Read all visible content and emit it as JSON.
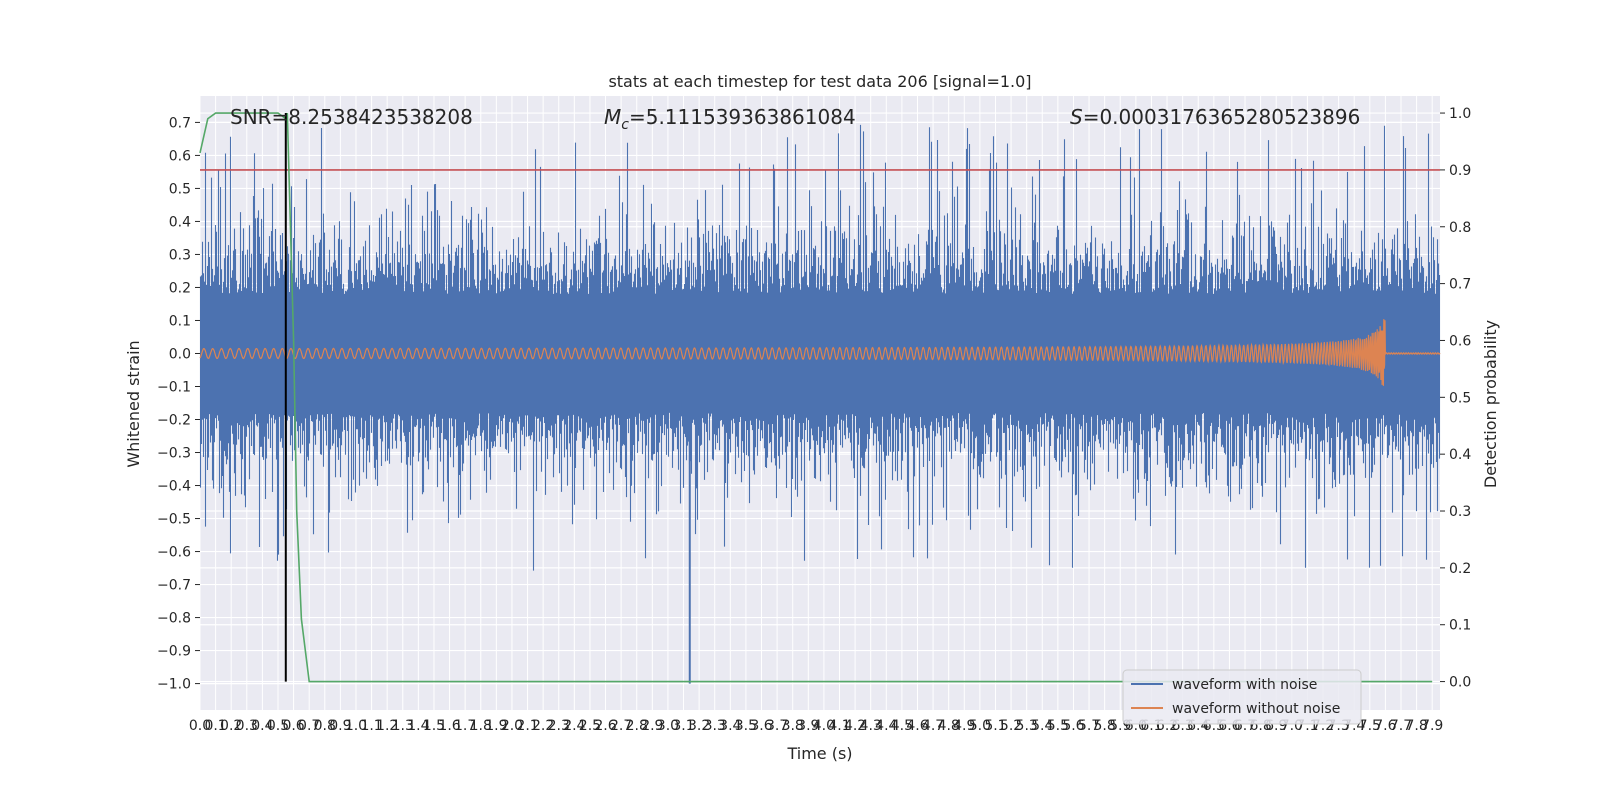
{
  "chart_data": {
    "type": "line",
    "title": "stats at each timestep for test data 206 [signal=1.0]",
    "xlabel": "Time (s)",
    "ylabel_left": "Whitened strain",
    "ylabel_right": "Detection probability",
    "xlim": [
      0.0,
      7.95
    ],
    "ylim_left": [
      -1.08,
      0.78
    ],
    "ylim_right": [
      -0.05,
      1.03
    ],
    "x_ticks": [
      "0.0",
      "0.1",
      "0.2",
      "0.3",
      "0.4",
      "0.5",
      "0.6",
      "0.7",
      "0.8",
      "0.9",
      "1.0",
      "1.1",
      "1.2",
      "1.3",
      "1.4",
      "1.5",
      "1.6",
      "1.7",
      "1.8",
      "1.9",
      "2.0",
      "2.1",
      "2.2",
      "2.3",
      "2.4",
      "2.5",
      "2.6",
      "2.7",
      "2.8",
      "2.9",
      "3.0",
      "3.1",
      "3.2",
      "3.3",
      "3.4",
      "3.5",
      "3.6",
      "3.7",
      "3.8",
      "3.9",
      "4.0",
      "4.1",
      "4.2",
      "4.3",
      "4.4",
      "4.5",
      "4.6",
      "4.7",
      "4.8",
      "4.9",
      "5.0",
      "5.1",
      "5.2",
      "5.3",
      "5.4",
      "5.5",
      "5.6",
      "5.7",
      "5.8",
      "5.9",
      "6.0",
      "6.1",
      "6.2",
      "6.3",
      "6.4",
      "6.5",
      "6.6",
      "6.7",
      "6.8",
      "6.9",
      "7.0",
      "7.1",
      "7.2",
      "7.3",
      "7.4",
      "7.5",
      "7.6",
      "7.7",
      "7.8",
      "7.9"
    ],
    "y_ticks_left": [
      "0.7",
      "0.6",
      "0.5",
      "0.4",
      "0.3",
      "0.2",
      "0.1",
      "0.0",
      "−0.1",
      "−0.2",
      "−0.3",
      "−0.4",
      "−0.5",
      "−0.6",
      "−0.7",
      "−0.8",
      "−0.9",
      "−1.0"
    ],
    "y_ticks_right": [
      "1.0",
      "0.9",
      "0.8",
      "0.7",
      "0.6",
      "0.5",
      "0.4",
      "0.3",
      "0.2",
      "0.1",
      "0.0"
    ],
    "stats": {
      "snr": "SNR=8.2538423538208",
      "mc_symbol": "M",
      "mc_sub": "c",
      "mc_value": "=5.111539363861084",
      "s_symbol": "S",
      "s_value": "=0.0003176365280523896"
    },
    "series": [
      {
        "name": "waveform with noise",
        "color": "#4c72b0",
        "axis": "left",
        "description_values": {
          "typical_abs_max": 0.4,
          "peak_max": 0.7,
          "peak_min": -1.0,
          "peak_min_time": 3.14
        }
      },
      {
        "name": "waveform without noise",
        "color": "#dd8452",
        "axis": "left",
        "description_values": {
          "start_amp": 0.01,
          "end_amp": 0.14,
          "merger_time": 7.6
        }
      },
      {
        "name": "detection probability",
        "color": "#55a868",
        "axis": "right",
        "x": [
          0.0,
          0.05,
          0.1,
          0.15,
          0.2,
          0.3,
          0.4,
          0.45,
          0.5,
          0.55,
          0.56,
          0.6,
          0.62,
          0.65,
          0.7,
          0.8,
          1.0,
          2.0,
          3.0,
          4.0,
          5.0,
          6.0,
          7.0,
          7.9
        ],
        "values": [
          0.93,
          0.99,
          1.0,
          1.0,
          1.0,
          1.0,
          1.0,
          1.0,
          1.0,
          0.99,
          1.0,
          0.6,
          0.3,
          0.11,
          0.0,
          0.0,
          0.0,
          0.0,
          0.0,
          0.0,
          0.0,
          0.0,
          0.0,
          0.0
        ]
      }
    ],
    "threshold": {
      "value": 0.9,
      "axis": "right",
      "color": "#c44e52"
    },
    "marker_line": {
      "x": 0.55,
      "color": "#000000"
    },
    "legend": {
      "position": "lower-right",
      "entries": [
        {
          "label": "waveform with noise",
          "color": "#4c72b0"
        },
        {
          "label": "waveform without noise",
          "color": "#dd8452"
        }
      ]
    },
    "grid": true
  }
}
